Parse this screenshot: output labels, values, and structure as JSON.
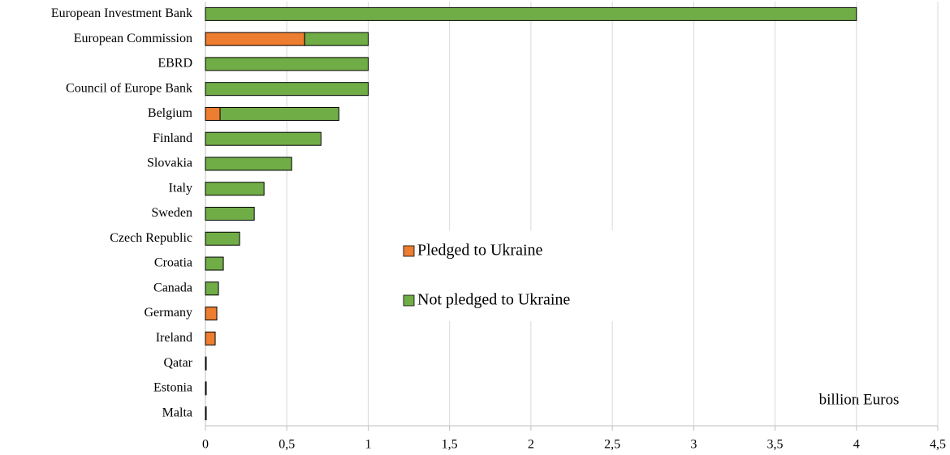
{
  "chart_data": {
    "type": "stacked_barh",
    "categories": [
      "European Investment Bank",
      "European Commission",
      "EBRD",
      "Council of Europe Bank",
      "Belgium",
      "Finland",
      "Slovakia",
      "Italy",
      "Sweden",
      "Czech Republic",
      "Croatia",
      "Canada",
      "Germany",
      "Ireland",
      "Qatar",
      "Estonia",
      "Malta"
    ],
    "series": [
      {
        "name": "Pledged to Ukraine",
        "color": "#ed7d31",
        "values": [
          0,
          0.61,
          0,
          0,
          0.09,
          0,
          0,
          0,
          0,
          0,
          0,
          0,
          0.07,
          0.06,
          0,
          0,
          0
        ]
      },
      {
        "name": "Not pledged to Ukraine",
        "color": "#70ad47",
        "values": [
          4,
          0.39,
          1,
          1,
          0.73,
          0.71,
          0.53,
          0.36,
          0.3,
          0.21,
          0.11,
          0.08,
          0,
          0,
          0.005,
          0.005,
          0.005
        ]
      }
    ],
    "xlim": [
      0,
      4.5
    ],
    "xticks": [
      0,
      {
        "value": 0.5,
        "label": "0,5"
      },
      1,
      {
        "value": 1.5,
        "label": "1,5"
      },
      2,
      {
        "value": 2.5,
        "label": "2,5"
      },
      3,
      {
        "value": 3.5,
        "label": "3,5"
      },
      4,
      {
        "value": 4.5,
        "label": "4,5"
      }
    ],
    "grid": true,
    "annotation": "billion Euros"
  }
}
